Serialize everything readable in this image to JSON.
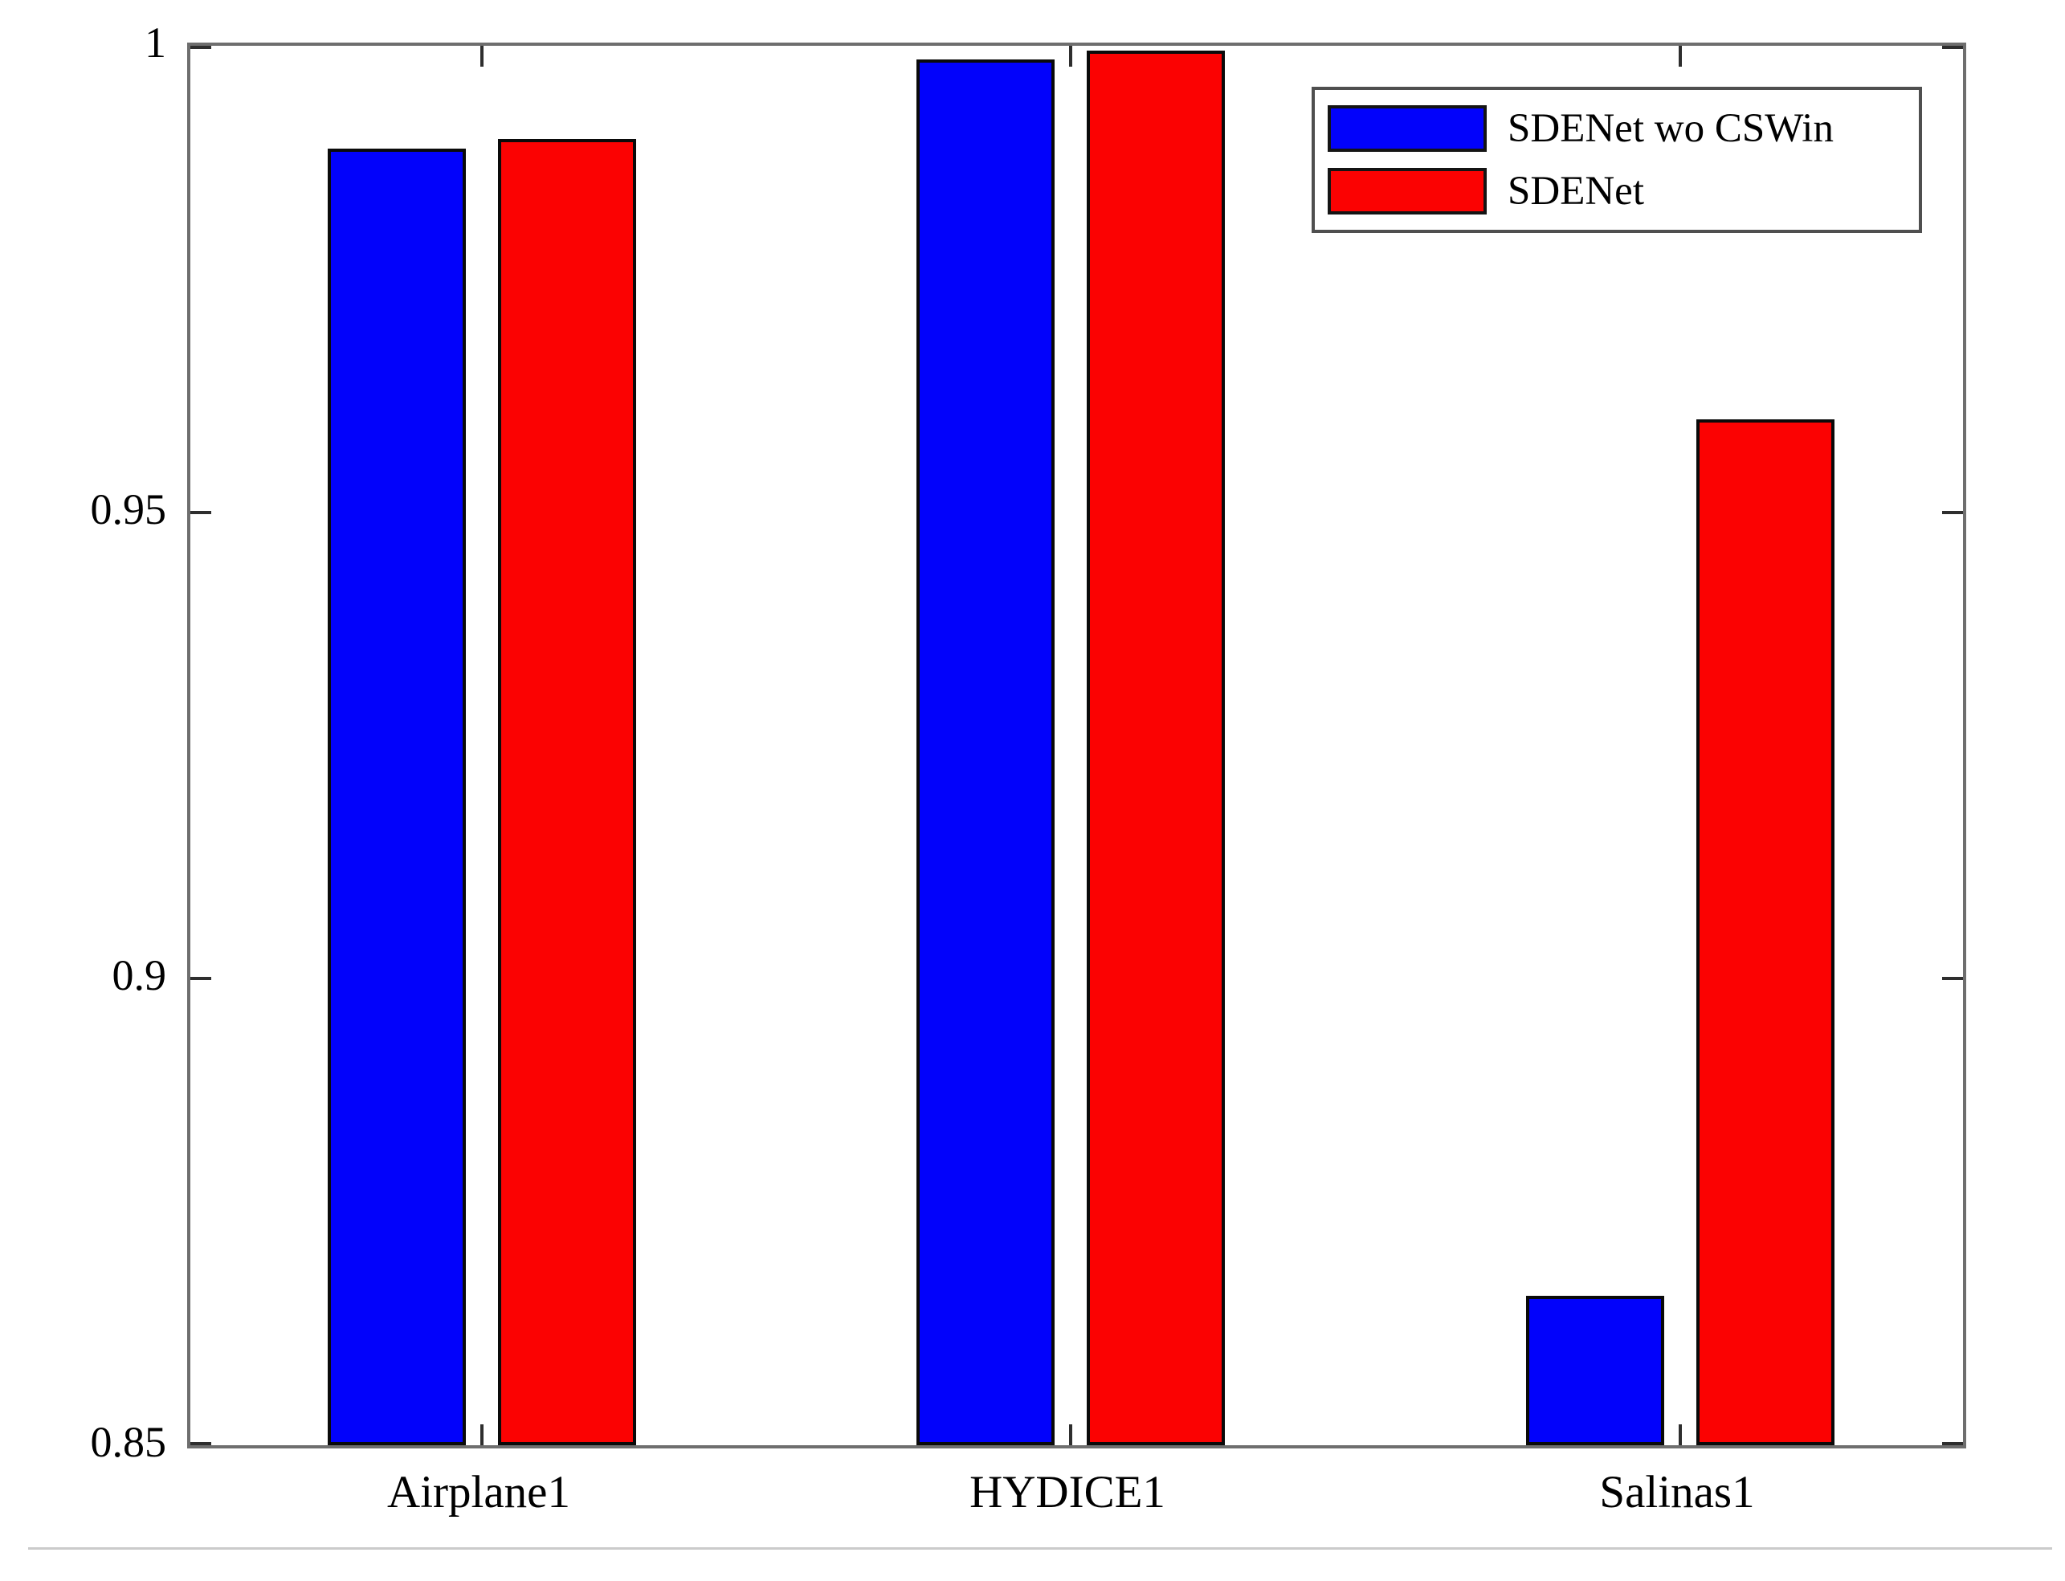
{
  "chart_data": {
    "type": "bar",
    "title": "",
    "xlabel": "",
    "ylabel": "",
    "categories": [
      "Airplane1",
      "HYDICE1",
      "Salinas1"
    ],
    "series": [
      {
        "name": "SDENet wo CSWin",
        "color": "#0202fb",
        "values": [
          0.989,
          0.9985,
          0.866
        ]
      },
      {
        "name": "SDENet",
        "color": "#fb0202",
        "values": [
          0.99,
          0.9995,
          0.96
        ]
      }
    ],
    "ylim": [
      0.85,
      1.0
    ],
    "yticks": [
      0.85,
      0.9,
      0.95,
      1
    ],
    "ytick_labels": [
      "0.85",
      "0.9",
      "0.95",
      "1"
    ],
    "grid": false,
    "legend_position": "top-right",
    "frame": "box-with-mirrored-ticks"
  }
}
